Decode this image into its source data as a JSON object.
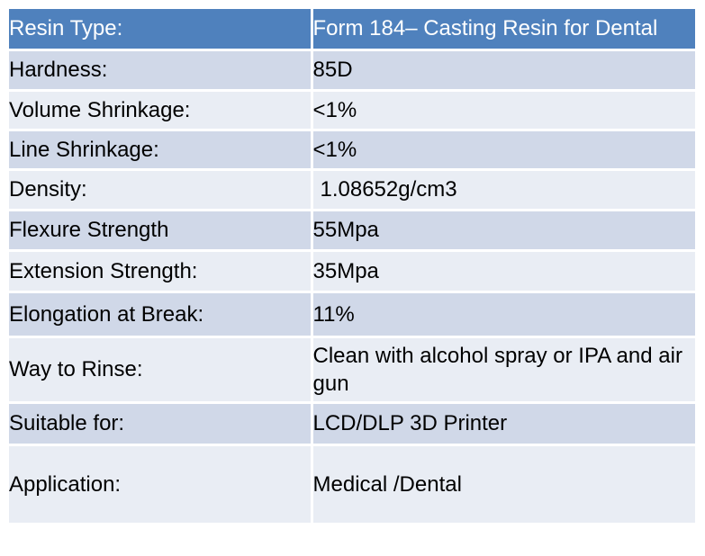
{
  "table": {
    "header": {
      "label": "Resin Type:",
      "value": "Form 184– Casting  Resin  for Dental"
    },
    "rows": [
      {
        "label": "Hardness:",
        "value": "85D"
      },
      {
        "label": "Volume Shrinkage:",
        "value": "<1%"
      },
      {
        "label": "Line Shrinkage:",
        "value": "<1%"
      },
      {
        "label": "Density:",
        "value": "1.08652g/cm3"
      },
      {
        "label": "Flexure Strength",
        "value": "55Mpa"
      },
      {
        "label": "Extension Strength:",
        "value": "35Mpa"
      },
      {
        "label": "Elongation at Break:",
        "value": "11%"
      },
      {
        "label": "Way to Rinse:",
        "value": "Clean with alcohol spray or IPA and air gun"
      },
      {
        "label": "Suitable for:",
        "value": "LCD/DLP 3D Printer"
      },
      {
        "label": "Application:",
        "value": "Medical /Dental"
      }
    ]
  },
  "colors": {
    "header_bg": "#4f81bd",
    "row_dark": "#d0d8e8",
    "row_light": "#e9edf4",
    "header_text": "#ffffff",
    "body_text": "#000000"
  }
}
